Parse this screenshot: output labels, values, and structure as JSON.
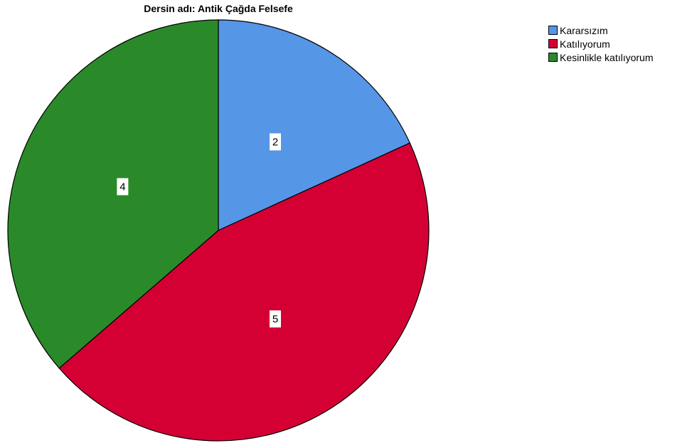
{
  "chart_data": {
    "type": "pie",
    "title": "Dersin adı: Antik Çağda Felsefe",
    "categories": [
      "Kararsızım",
      "Katılıyorum",
      "Kesinlikle katılıyorum"
    ],
    "values": [
      2,
      5,
      4
    ],
    "data_labels": [
      "2",
      "5",
      "4"
    ],
    "colors": [
      "#5596e6",
      "#d40034",
      "#2a8a2a"
    ],
    "legend_placement": "top-right"
  }
}
